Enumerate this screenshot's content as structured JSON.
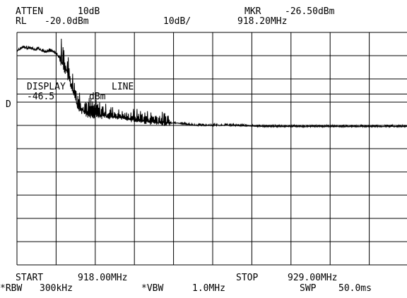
{
  "header": {
    "atten_label": "ATTEN",
    "atten_value": "10dB",
    "rl_label": "RL",
    "rl_value": "-20.0dBm",
    "scale": "10dB/",
    "marker_label": "MKR",
    "marker_level": "-26.50dBm",
    "marker_freq": "918.20MHz"
  },
  "display_line": {
    "title_left": "DISPLAY",
    "title_right": "LINE",
    "value": "-46.5",
    "unit": "dBm",
    "side_marker": "D"
  },
  "footer": {
    "start_label": "START",
    "start_value": "918.00MHz",
    "stop_label": "STOP",
    "stop_value": "929.00MHz",
    "rbw_label": "*RBW",
    "rbw_value": "300kHz",
    "vbw_label": "*VBW",
    "vbw_value": "1.0MHz",
    "swp_label": "SWP",
    "swp_value": "50.0ms"
  },
  "chart_data": {
    "type": "line",
    "x_start_mhz": 918.0,
    "x_stop_mhz": 929.0,
    "reference_level_dbm": -20.0,
    "scale_db_per_div": 10,
    "divisions": {
      "x": 10,
      "y": 10
    },
    "display_line_dbm": -46.5,
    "marker": {
      "freq_mhz": 918.2,
      "level_dbm": -26.5
    },
    "series": [
      {
        "x": [
          918.0,
          918.1,
          918.2,
          918.3,
          918.4,
          918.5,
          918.6,
          918.7,
          918.8,
          918.9,
          919.0,
          919.1,
          919.2,
          919.3,
          919.4,
          919.5,
          919.6,
          919.7,
          919.8,
          919.9,
          920.0,
          920.5,
          921.0,
          921.5,
          922.0,
          922.5,
          923.0,
          923.5,
          924.0,
          925.0,
          926.0,
          927.0,
          928.0,
          929.0
        ],
        "y": [
          -28,
          -27,
          -26.5,
          -27,
          -26.8,
          -27.5,
          -27,
          -28,
          -28.5,
          -28,
          -28.2,
          -29,
          -31,
          -34,
          -37,
          -42,
          -47,
          -51,
          -53,
          -54,
          -55,
          -56,
          -57,
          -58,
          -59,
          -59,
          -60,
          -60,
          -60,
          -60.5,
          -60.5,
          -60.5,
          -60.5,
          -60.5
        ]
      }
    ]
  }
}
